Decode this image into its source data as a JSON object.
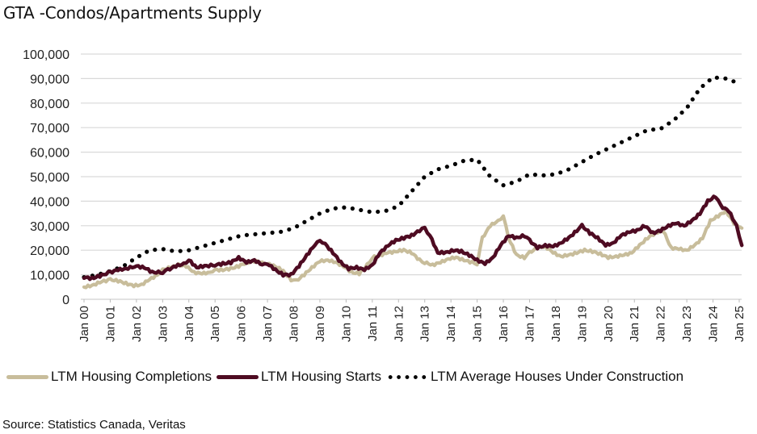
{
  "title": "GTA -Condos/Apartments Supply",
  "source": "Source: Statistics Canada, Veritas",
  "colors": {
    "completions": "#c8bd9b",
    "starts": "#4e0b22",
    "under_construction": "#000000",
    "gridline": "#d9d9d9"
  },
  "chart_data": {
    "type": "line",
    "title": "GTA -Condos/Apartments Supply",
    "xlabel": "",
    "ylabel": "",
    "x_range": [
      2000.0,
      2025.2
    ],
    "ylim": [
      0,
      100000
    ],
    "grid": true,
    "legend_position": "bottom",
    "y_ticks": [
      0,
      10000,
      20000,
      30000,
      40000,
      50000,
      60000,
      70000,
      80000,
      90000,
      100000
    ],
    "y_tick_labels": [
      "0",
      "10,000",
      "20,000",
      "30,000",
      "40,000",
      "50,000",
      "60,000",
      "70,000",
      "80,000",
      "90,000",
      "100,000"
    ],
    "x_tick_labels": [
      "Jan 00",
      "Jan 01",
      "Jan 02",
      "Jan 03",
      "Jan 04",
      "Jan 05",
      "Jan 06",
      "Jan 07",
      "Jan 08",
      "Jan 09",
      "Jan 10",
      "Jan 11",
      "Jan 12",
      "Jan 13",
      "Jan 14",
      "Jan 15",
      "Jan 16",
      "Jan 17",
      "Jan 18",
      "Jan 19",
      "Jan 20",
      "Jan 21",
      "Jan 22",
      "Jan 23",
      "Jan 24",
      "Jan 25"
    ],
    "series": [
      {
        "name": "LTM Housing Completions",
        "style": "solid",
        "color": "#c8bd9b",
        "x": [
          2000.0,
          2000.3,
          2000.6,
          2001.0,
          2001.3,
          2001.6,
          2001.9,
          2002.2,
          2002.5,
          2002.8,
          2003.0,
          2003.3,
          2003.6,
          2003.9,
          2004.2,
          2004.5,
          2004.8,
          2005.0,
          2005.3,
          2005.6,
          2005.9,
          2006.2,
          2006.5,
          2006.8,
          2007.0,
          2007.3,
          2007.6,
          2007.9,
          2008.1,
          2008.4,
          2008.7,
          2009.0,
          2009.3,
          2009.6,
          2009.9,
          2010.2,
          2010.5,
          2010.8,
          2011.0,
          2011.3,
          2011.6,
          2011.9,
          2012.2,
          2012.5,
          2012.8,
          2013.0,
          2013.3,
          2013.6,
          2013.9,
          2014.2,
          2014.5,
          2014.8,
          2015.0,
          2015.2,
          2015.5,
          2015.8,
          2016.0,
          2016.2,
          2016.5,
          2016.8,
          2017.0,
          2017.3,
          2017.6,
          2017.9,
          2018.2,
          2018.5,
          2018.8,
          2019.1,
          2019.4,
          2019.7,
          2020.0,
          2020.3,
          2020.6,
          2020.9,
          2021.2,
          2021.5,
          2021.8,
          2022.1,
          2022.4,
          2022.7,
          2023.0,
          2023.3,
          2023.6,
          2023.9,
          2024.2,
          2024.5,
          2024.8,
          2025.1
        ],
        "values": [
          5000,
          5500,
          7000,
          8000,
          7500,
          6500,
          5500,
          6000,
          8000,
          10000,
          12000,
          13000,
          14000,
          13500,
          11000,
          10500,
          11000,
          12000,
          12000,
          12500,
          13500,
          15000,
          15500,
          15000,
          14500,
          13500,
          11500,
          8000,
          7500,
          10000,
          13000,
          15500,
          16000,
          15000,
          13500,
          11000,
          10500,
          14000,
          17000,
          18000,
          19000,
          19500,
          20000,
          19000,
          16000,
          15000,
          14000,
          15000,
          16500,
          17000,
          16000,
          15000,
          14500,
          25000,
          30000,
          32000,
          34000,
          25000,
          18000,
          17000,
          19000,
          21000,
          21500,
          19000,
          17500,
          18000,
          19000,
          20000,
          19500,
          18500,
          17000,
          17500,
          18000,
          19000,
          22000,
          25000,
          27000,
          28000,
          21000,
          20500,
          20000,
          22000,
          25000,
          32000,
          34000,
          36000,
          31000,
          29000
        ]
      },
      {
        "name": "LTM Housing Starts",
        "style": "solid",
        "color": "#4e0b22",
        "x": [
          2000.0,
          2000.3,
          2000.6,
          2001.0,
          2001.3,
          2001.6,
          2002.0,
          2002.3,
          2002.6,
          2003.0,
          2003.2,
          2003.5,
          2003.8,
          2004.0,
          2004.3,
          2004.6,
          2005.0,
          2005.3,
          2005.6,
          2005.9,
          2006.2,
          2006.5,
          2006.8,
          2007.0,
          2007.3,
          2007.6,
          2007.9,
          2008.2,
          2008.5,
          2008.8,
          2009.0,
          2009.2,
          2009.5,
          2009.8,
          2010.1,
          2010.4,
          2010.7,
          2011.0,
          2011.3,
          2011.6,
          2011.9,
          2012.2,
          2012.5,
          2012.8,
          2013.0,
          2013.2,
          2013.5,
          2013.8,
          2014.1,
          2014.4,
          2014.7,
          2015.0,
          2015.3,
          2015.6,
          2015.9,
          2016.2,
          2016.5,
          2016.8,
          2017.0,
          2017.3,
          2017.6,
          2017.9,
          2018.2,
          2018.5,
          2018.8,
          2019.0,
          2019.3,
          2019.6,
          2019.9,
          2020.2,
          2020.5,
          2020.8,
          2021.1,
          2021.4,
          2021.7,
          2022.0,
          2022.3,
          2022.6,
          2022.9,
          2023.2,
          2023.5,
          2023.8,
          2024.1,
          2024.3,
          2024.6,
          2024.9,
          2025.1
        ],
        "values": [
          9000,
          8500,
          9500,
          11000,
          12000,
          12500,
          13500,
          13000,
          11000,
          11000,
          12000,
          13500,
          14500,
          16000,
          13000,
          13500,
          14000,
          14500,
          15000,
          17000,
          15000,
          16000,
          14000,
          14500,
          12000,
          10000,
          10000,
          13500,
          18000,
          22000,
          24000,
          22500,
          19000,
          15000,
          12500,
          13000,
          12000,
          14000,
          19000,
          22000,
          24000,
          25000,
          26000,
          28000,
          29000,
          26000,
          19000,
          19000,
          20000,
          19500,
          18000,
          16000,
          14500,
          17000,
          22000,
          26000,
          25000,
          26000,
          24000,
          21000,
          22000,
          21500,
          23000,
          25000,
          28000,
          30000,
          27000,
          25000,
          22000,
          23000,
          26000,
          27500,
          28000,
          30000,
          27000,
          28000,
          30000,
          31000,
          30000,
          32000,
          35000,
          40000,
          42000,
          38000,
          36000,
          30000,
          22000
        ]
      },
      {
        "name": "LTM Average Houses Under Construction",
        "style": "dotted",
        "color": "#000000",
        "x": [
          2000.0,
          2000.5,
          2001.0,
          2001.5,
          2002.0,
          2002.5,
          2003.0,
          2003.5,
          2004.0,
          2004.5,
          2005.0,
          2005.5,
          2006.0,
          2006.5,
          2007.0,
          2007.5,
          2008.0,
          2008.5,
          2009.0,
          2009.5,
          2010.0,
          2010.5,
          2011.0,
          2011.5,
          2012.0,
          2012.5,
          2013.0,
          2013.5,
          2014.0,
          2014.5,
          2015.0,
          2015.5,
          2016.0,
          2016.5,
          2017.0,
          2017.5,
          2018.0,
          2018.5,
          2019.0,
          2019.5,
          2020.0,
          2020.5,
          2021.0,
          2021.5,
          2022.0,
          2022.5,
          2023.0,
          2023.5,
          2024.0,
          2024.5,
          2025.0
        ],
        "values": [
          9000,
          10000,
          11500,
          13500,
          17000,
          20000,
          20500,
          19500,
          20000,
          21500,
          23000,
          24500,
          26000,
          26500,
          27000,
          27500,
          29000,
          32000,
          35000,
          37000,
          37500,
          36500,
          35500,
          36000,
          38000,
          44000,
          50000,
          53000,
          54500,
          56500,
          57000,
          50000,
          46500,
          48000,
          51000,
          50500,
          51000,
          53000,
          56000,
          59000,
          61500,
          64000,
          66500,
          69000,
          69500,
          73000,
          78000,
          86000,
          90500,
          90000,
          88000
        ]
      }
    ]
  }
}
